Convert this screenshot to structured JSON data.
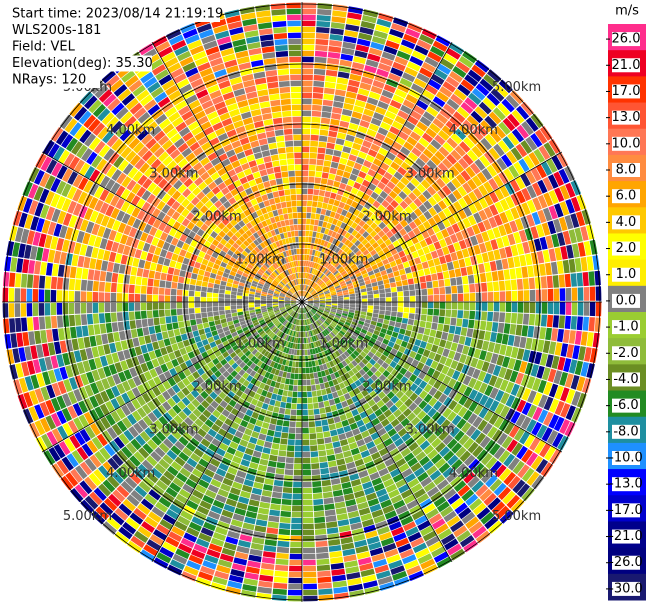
{
  "chart_data": {
    "type": "ppi",
    "info": [
      "Start time: 2023/08/14 21:19:19",
      "WLS200s-181",
      "Field: VEL",
      "Elevation(deg): 35.30",
      "NRays: 120"
    ],
    "ring_labels": [
      "1.00km",
      "2.00km",
      "3.00km",
      "4.00km",
      "5.00km"
    ],
    "colorbar": {
      "unit": "m/s",
      "ticks": [
        {
          "value": 26,
          "label": "26.0"
        },
        {
          "value": 21,
          "label": "21.0"
        },
        {
          "value": 17,
          "label": "17.0"
        },
        {
          "value": 13,
          "label": "13.0"
        },
        {
          "value": 10,
          "label": "10.0"
        },
        {
          "value": 8,
          "label": "8.0"
        },
        {
          "value": 6,
          "label": "6.0"
        },
        {
          "value": 4,
          "label": "4.0"
        },
        {
          "value": 2,
          "label": "2.0"
        },
        {
          "value": 1,
          "label": "1.0"
        },
        {
          "value": 0,
          "label": "0.0"
        },
        {
          "value": -1,
          "label": "-1.0"
        },
        {
          "value": -2,
          "label": "-2.0"
        },
        {
          "value": -4,
          "label": "-4.0"
        },
        {
          "value": -6,
          "label": "-6.0"
        },
        {
          "value": -8,
          "label": "-8.0"
        },
        {
          "value": -10,
          "label": "-10.0"
        },
        {
          "value": -13,
          "label": "-13.0"
        },
        {
          "value": -17,
          "label": "-17.0"
        },
        {
          "value": -21,
          "label": "-21.0"
        },
        {
          "value": -26,
          "label": "-26.0"
        },
        {
          "value": -30,
          "label": "-30.0"
        }
      ],
      "colors": [
        "#ff2e8c",
        "#ee0022",
        "#ff3300",
        "#ff5533",
        "#ff7755",
        "#ff8c40",
        "#ffa500",
        "#ffc800",
        "#ffff00",
        "#ffee00",
        "#808080",
        "#9acd32",
        "#8fbc3a",
        "#6b8e23",
        "#228b22",
        "#1e8fa0",
        "#1e90ff",
        "#0000ff",
        "#0000cd",
        "#00008b",
        "#000080",
        "#191970"
      ]
    }
  }
}
